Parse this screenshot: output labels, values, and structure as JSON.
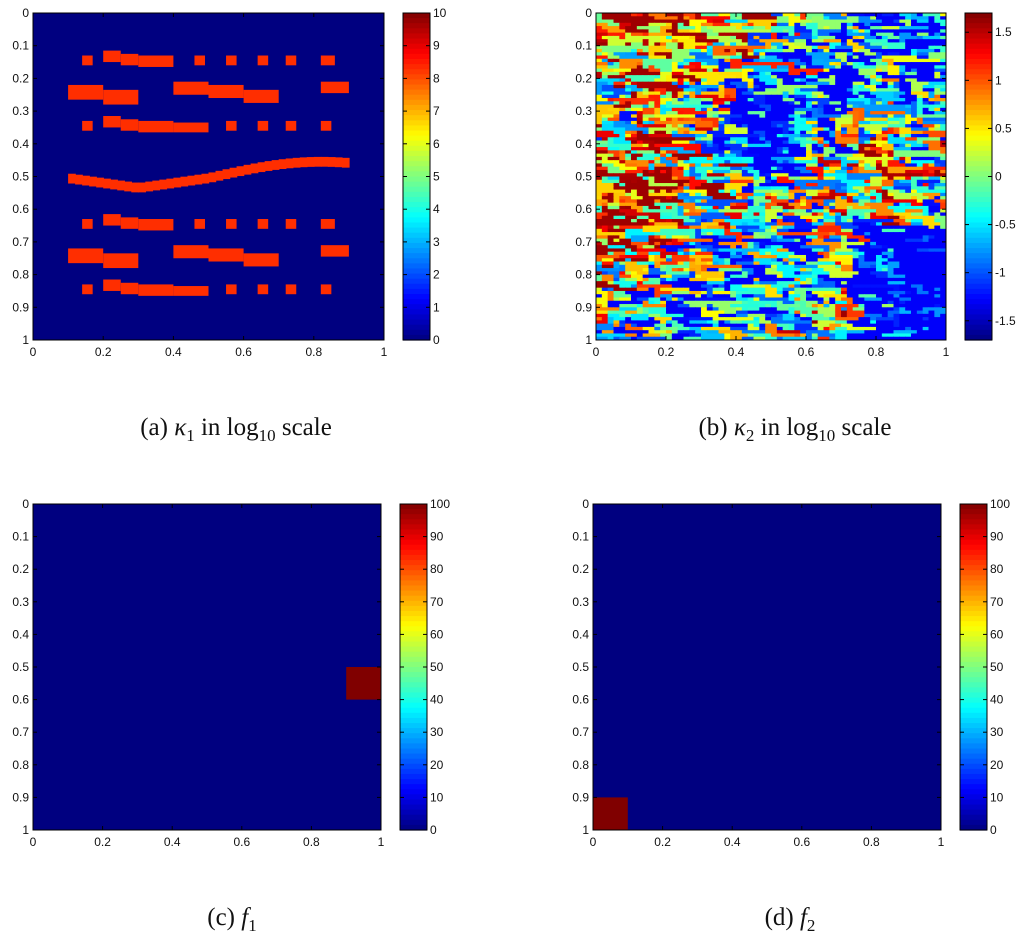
{
  "figure": {
    "panels": [
      {
        "id": "a",
        "caption_prefix": "(a) ",
        "symbol": "κ",
        "sub": "1",
        "mid": " in log",
        "log_sub": "10",
        "suffix": " scale"
      },
      {
        "id": "b",
        "caption_prefix": "(b) ",
        "symbol": "κ",
        "sub": "2",
        "mid": " in log",
        "log_sub": "10",
        "suffix": " scale"
      },
      {
        "id": "c",
        "caption_prefix": "(c) ",
        "symbol": "f",
        "sub": "1"
      },
      {
        "id": "d",
        "caption_prefix": "(d) ",
        "symbol": "f",
        "sub": "2"
      }
    ]
  },
  "chart_data": [
    {
      "id": "a",
      "type": "heatmap",
      "title": "(a) κ1 in log10 scale",
      "xlim": [
        0,
        1
      ],
      "ylim": [
        0,
        1
      ],
      "x_ticks": [
        "0",
        "0.2",
        "0.4",
        "0.6",
        "0.8",
        "1"
      ],
      "y_ticks": [
        "0",
        "0.1",
        "0.2",
        "0.3",
        "0.4",
        "0.5",
        "0.6",
        "0.7",
        "0.8",
        "0.9",
        "1"
      ],
      "colorbar_range": [
        0,
        10
      ],
      "colorbar_ticks": [
        "10",
        "9",
        "8",
        "7",
        "6",
        "5",
        "4",
        "3",
        "2",
        "1",
        "0"
      ],
      "background_value": 0,
      "inclusion_value": 8.3,
      "pattern": "channels-and-dots",
      "wave_channel": {
        "x_start": 0.1,
        "x_end": 0.9,
        "y_start": 0.49,
        "y_min": 0.52,
        "y_max": 0.44
      }
    },
    {
      "id": "b",
      "type": "heatmap",
      "title": "(b) κ2 in log10 scale",
      "xlim": [
        0,
        1
      ],
      "ylim": [
        0,
        1
      ],
      "x_ticks": [
        "0",
        "0.2",
        "0.4",
        "0.6",
        "0.8",
        "1"
      ],
      "y_ticks": [
        "0",
        "0.1",
        "0.2",
        "0.3",
        "0.4",
        "0.5",
        "0.6",
        "0.7",
        "0.8",
        "0.9",
        "1"
      ],
      "colorbar_range": [
        -1.7,
        1.7
      ],
      "colorbar_ticks": [
        "1.5",
        "1",
        "0.5",
        "0",
        "-0.5",
        "-1",
        "-1.5"
      ],
      "pattern": "random-layered-field",
      "grid": [
        60,
        100
      ]
    },
    {
      "id": "c",
      "type": "heatmap",
      "title": "(c) f1",
      "xlim": [
        0,
        1
      ],
      "ylim": [
        0,
        1
      ],
      "x_ticks": [
        "0",
        "0.2",
        "0.4",
        "0.6",
        "0.8",
        "1"
      ],
      "y_ticks": [
        "0",
        "0.1",
        "0.2",
        "0.3",
        "0.4",
        "0.5",
        "0.6",
        "0.7",
        "0.8",
        "0.9",
        "1"
      ],
      "colorbar_range": [
        0,
        100
      ],
      "colorbar_ticks": [
        "100",
        "90",
        "80",
        "70",
        "60",
        "50",
        "40",
        "30",
        "20",
        "10",
        "0"
      ],
      "background_value": 0,
      "source": {
        "x": [
          0.9,
          1.0
        ],
        "y": [
          0.5,
          0.6
        ],
        "value": 100
      }
    },
    {
      "id": "d",
      "type": "heatmap",
      "title": "(d) f2",
      "xlim": [
        0,
        1
      ],
      "ylim": [
        0,
        1
      ],
      "x_ticks": [
        "0",
        "0.2",
        "0.4",
        "0.6",
        "0.8",
        "1"
      ],
      "y_ticks": [
        "0",
        "0.1",
        "0.2",
        "0.3",
        "0.4",
        "0.5",
        "0.6",
        "0.7",
        "0.8",
        "0.9",
        "1"
      ],
      "colorbar_range": [
        0,
        100
      ],
      "colorbar_ticks": [
        "100",
        "90",
        "80",
        "70",
        "60",
        "50",
        "40",
        "30",
        "20",
        "10",
        "0"
      ],
      "background_value": 0,
      "source": {
        "x": [
          0.0,
          0.1
        ],
        "y": [
          0.9,
          1.0
        ],
        "value": 100
      }
    }
  ]
}
